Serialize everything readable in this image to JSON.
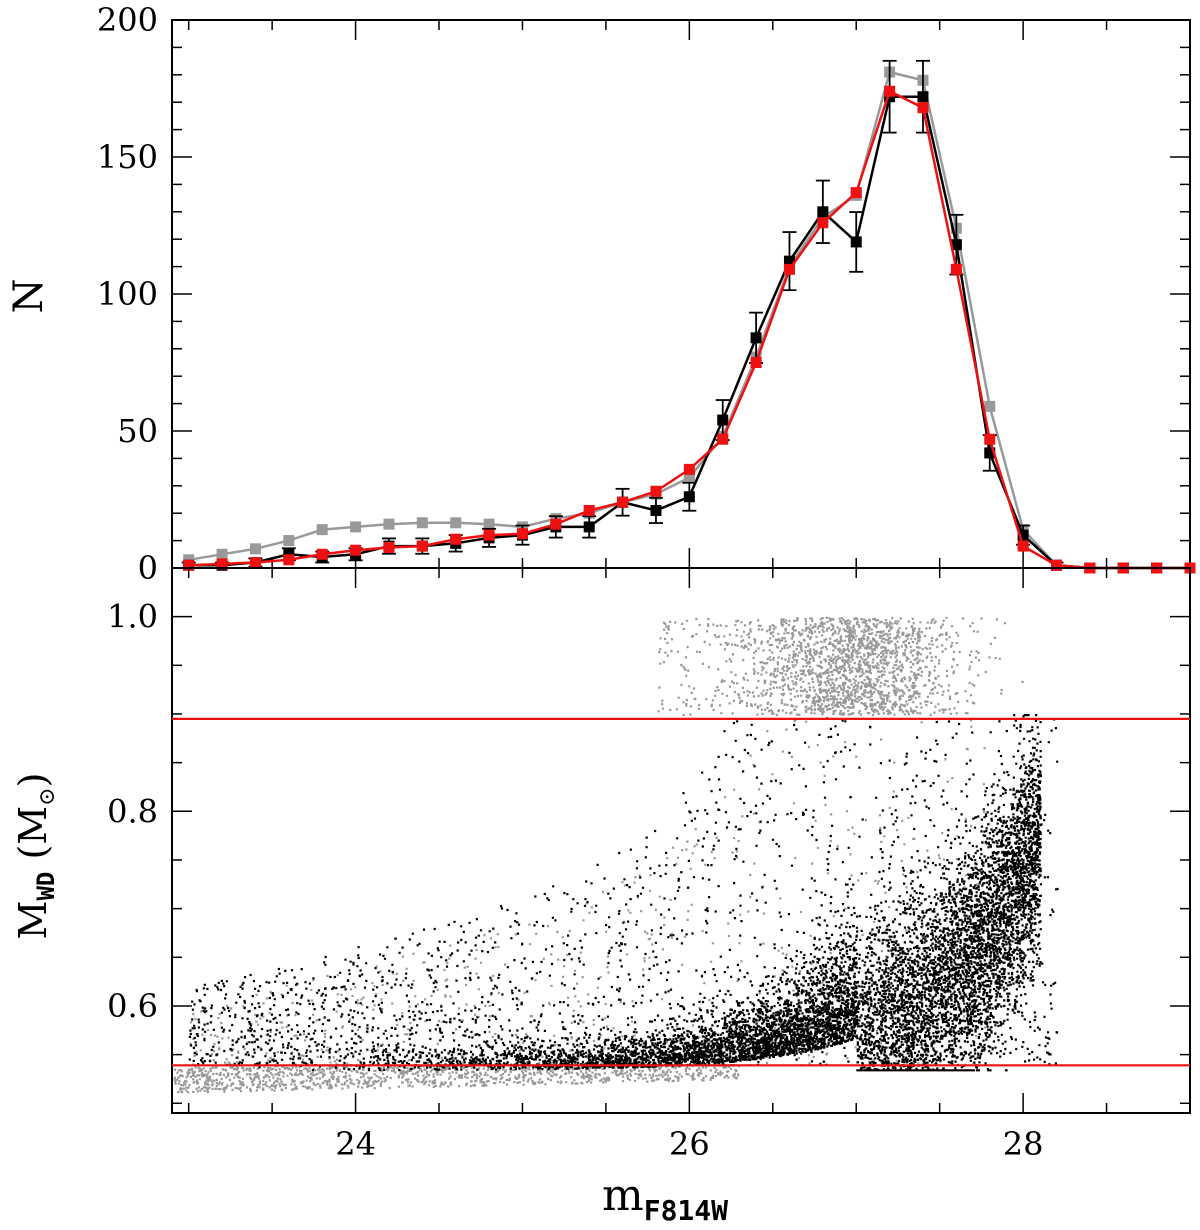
{
  "chart_data": [
    {
      "type": "line",
      "panel": "top",
      "ylabel": "N",
      "xlim": [
        22.9,
        29.0
      ],
      "ylim": [
        0,
        200
      ],
      "x_ticks": [],
      "y_ticks": [
        "0",
        "50",
        "100",
        "150",
        "200"
      ],
      "series": [
        {
          "color": "#000000",
          "error_bars": true,
          "points": [
            {
              "x": 23.0,
              "y": 1,
              "err": 1
            },
            {
              "x": 23.2,
              "y": 1,
              "err": 1
            },
            {
              "x": 23.4,
              "y": 2,
              "err": 1.5
            },
            {
              "x": 23.6,
              "y": 5,
              "err": 2.2
            },
            {
              "x": 23.8,
              "y": 4,
              "err": 2
            },
            {
              "x": 24.0,
              "y": 5,
              "err": 2.2
            },
            {
              "x": 24.2,
              "y": 8,
              "err": 2.8
            },
            {
              "x": 24.4,
              "y": 8,
              "err": 2.8
            },
            {
              "x": 24.6,
              "y": 9,
              "err": 3
            },
            {
              "x": 24.8,
              "y": 11,
              "err": 3.3
            },
            {
              "x": 25.0,
              "y": 12,
              "err": 3.5
            },
            {
              "x": 25.2,
              "y": 15,
              "err": 3.9
            },
            {
              "x": 25.4,
              "y": 15,
              "err": 3.9
            },
            {
              "x": 25.6,
              "y": 24,
              "err": 4.9
            },
            {
              "x": 25.8,
              "y": 21,
              "err": 4.6
            },
            {
              "x": 26.0,
              "y": 26,
              "err": 5.1
            },
            {
              "x": 26.2,
              "y": 54,
              "err": 7.3
            },
            {
              "x": 26.4,
              "y": 84,
              "err": 9.2
            },
            {
              "x": 26.6,
              "y": 112,
              "err": 10.6
            },
            {
              "x": 26.8,
              "y": 130,
              "err": 11.4
            },
            {
              "x": 27.0,
              "y": 119,
              "err": 10.9
            },
            {
              "x": 27.2,
              "y": 172,
              "err": 13.1
            },
            {
              "x": 27.4,
              "y": 172,
              "err": 13.1
            },
            {
              "x": 27.6,
              "y": 118,
              "err": 10.9
            },
            {
              "x": 27.8,
              "y": 42,
              "err": 6.5
            },
            {
              "x": 28.0,
              "y": 12,
              "err": 3.5
            },
            {
              "x": 28.2,
              "y": 1,
              "err": 1
            },
            {
              "x": 28.4,
              "y": 0,
              "err": 0
            },
            {
              "x": 28.6,
              "y": 0,
              "err": 0
            },
            {
              "x": 28.8,
              "y": 0,
              "err": 0
            },
            {
              "x": 29.0,
              "y": 0,
              "err": 0
            }
          ]
        },
        {
          "color": "#999999",
          "error_bars": false,
          "points": [
            {
              "x": 23.0,
              "y": 3
            },
            {
              "x": 23.2,
              "y": 5
            },
            {
              "x": 23.4,
              "y": 7
            },
            {
              "x": 23.6,
              "y": 10
            },
            {
              "x": 23.8,
              "y": 14
            },
            {
              "x": 24.0,
              "y": 15
            },
            {
              "x": 24.2,
              "y": 16
            },
            {
              "x": 24.4,
              "y": 16.5
            },
            {
              "x": 24.6,
              "y": 16.5
            },
            {
              "x": 24.8,
              "y": 16
            },
            {
              "x": 25.0,
              "y": 15
            },
            {
              "x": 25.2,
              "y": 18
            },
            {
              "x": 25.4,
              "y": 20
            },
            {
              "x": 25.6,
              "y": 24
            },
            {
              "x": 25.8,
              "y": 27
            },
            {
              "x": 26.0,
              "y": 33
            },
            {
              "x": 26.2,
              "y": 48
            },
            {
              "x": 26.4,
              "y": 77
            },
            {
              "x": 26.6,
              "y": 110
            },
            {
              "x": 26.8,
              "y": 128
            },
            {
              "x": 27.0,
              "y": 136
            },
            {
              "x": 27.2,
              "y": 181
            },
            {
              "x": 27.4,
              "y": 178
            },
            {
              "x": 27.6,
              "y": 124
            },
            {
              "x": 27.8,
              "y": 59
            },
            {
              "x": 28.0,
              "y": 14
            },
            {
              "x": 28.2,
              "y": 1
            },
            {
              "x": 28.4,
              "y": 0
            },
            {
              "x": 28.6,
              "y": 0
            },
            {
              "x": 28.8,
              "y": 0
            },
            {
              "x": 29.0,
              "y": 0
            }
          ]
        },
        {
          "color": "#ee1111",
          "error_bars": false,
          "points": [
            {
              "x": 23.0,
              "y": 1
            },
            {
              "x": 23.2,
              "y": 1.5
            },
            {
              "x": 23.4,
              "y": 2
            },
            {
              "x": 23.6,
              "y": 3
            },
            {
              "x": 23.8,
              "y": 5
            },
            {
              "x": 24.0,
              "y": 6.5
            },
            {
              "x": 24.2,
              "y": 7.5
            },
            {
              "x": 24.4,
              "y": 8
            },
            {
              "x": 24.6,
              "y": 10.5
            },
            {
              "x": 24.8,
              "y": 12
            },
            {
              "x": 25.0,
              "y": 12.5
            },
            {
              "x": 25.2,
              "y": 16
            },
            {
              "x": 25.4,
              "y": 21
            },
            {
              "x": 25.6,
              "y": 24
            },
            {
              "x": 25.8,
              "y": 28
            },
            {
              "x": 26.0,
              "y": 36
            },
            {
              "x": 26.2,
              "y": 47
            },
            {
              "x": 26.4,
              "y": 75
            },
            {
              "x": 26.6,
              "y": 109
            },
            {
              "x": 26.8,
              "y": 126
            },
            {
              "x": 27.0,
              "y": 137
            },
            {
              "x": 27.2,
              "y": 174
            },
            {
              "x": 27.4,
              "y": 168
            },
            {
              "x": 27.6,
              "y": 109
            },
            {
              "x": 27.8,
              "y": 47
            },
            {
              "x": 28.0,
              "y": 8
            },
            {
              "x": 28.2,
              "y": 1
            },
            {
              "x": 28.4,
              "y": 0
            },
            {
              "x": 28.6,
              "y": 0
            },
            {
              "x": 28.8,
              "y": 0
            },
            {
              "x": 29.0,
              "y": 0
            }
          ]
        }
      ]
    },
    {
      "type": "scatter",
      "panel": "bottom",
      "xlabel_main": "m",
      "xlabel_sub": "F814W",
      "ylabel_main": "M",
      "ylabel_sub": "WD",
      "ylabel_unit_open": " (M",
      "ylabel_unit_sub": "⊙",
      "ylabel_unit_close": ")",
      "xlim": [
        22.9,
        29.0
      ],
      "ylim": [
        0.49,
        1.05
      ],
      "x_ticks": [
        "24",
        "26",
        "28"
      ],
      "y_ticks": [
        "0.6",
        "0.8",
        "1.0"
      ],
      "point_colors": [
        "#000000",
        "#999999"
      ],
      "hlines": [
        {
          "y": 0.895,
          "color": "#ee1111"
        },
        {
          "y": 0.539,
          "color": "#ee1111"
        }
      ]
    }
  ]
}
